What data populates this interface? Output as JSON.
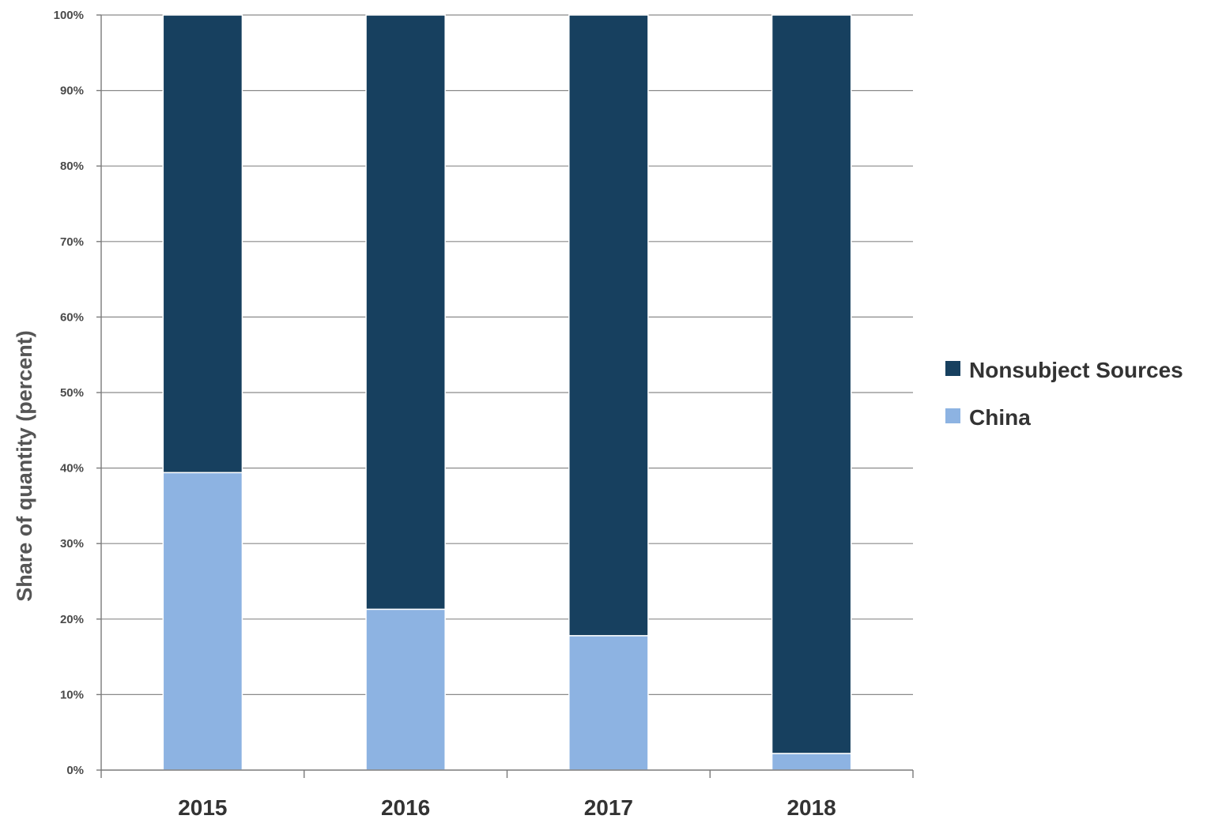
{
  "chart_data": {
    "type": "bar",
    "stacked": true,
    "categories": [
      "2015",
      "2016",
      "2017",
      "2018"
    ],
    "series": [
      {
        "name": "China",
        "values": [
          39.4,
          21.3,
          17.8,
          2.2
        ],
        "color": "#8db3e2"
      },
      {
        "name": "Nonsubject Sources",
        "values": [
          60.6,
          78.7,
          82.2,
          97.8
        ],
        "color": "#17405f"
      }
    ],
    "ylabel": "Share of quantity (percent)",
    "xlabel": "",
    "ylim": [
      0,
      100
    ],
    "yticks": [
      "0%",
      "10%",
      "20%",
      "30%",
      "40%",
      "50%",
      "60%",
      "70%",
      "80%",
      "90%",
      "100%"
    ],
    "grid": true,
    "legend": {
      "position": "right",
      "entries": [
        "Nonsubject Sources",
        "China"
      ]
    }
  }
}
